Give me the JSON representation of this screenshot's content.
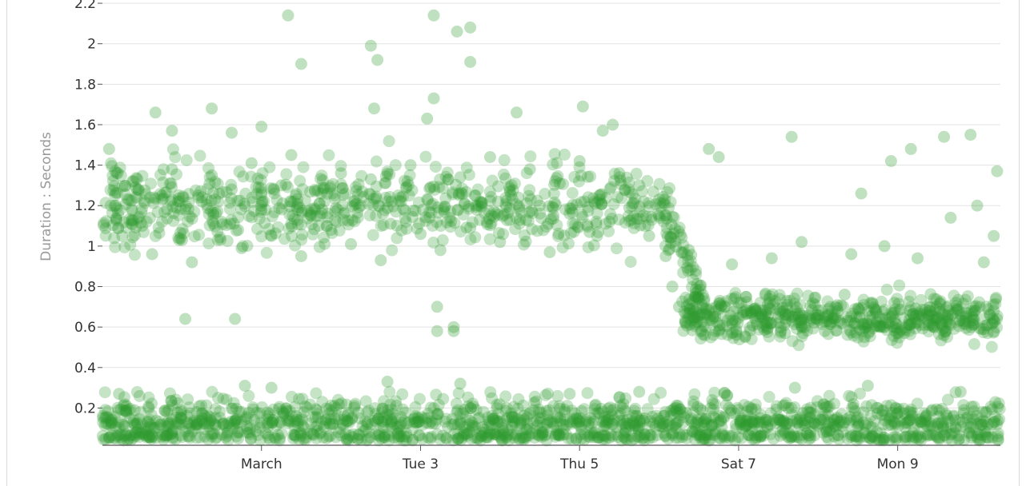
{
  "chart_data": {
    "type": "scatter",
    "ylabel": "Duration : Seconds",
    "xlabel": "",
    "y_ticks": [
      "0.2",
      "0.4",
      "0.6",
      "0.8",
      "1",
      "1.2",
      "1.4",
      "1.6",
      "1.8",
      "2",
      "2.2"
    ],
    "x_ticks": [
      {
        "label": "March",
        "date": "2020-03-01"
      },
      {
        "label": "Tue 3",
        "date": "2020-03-03"
      },
      {
        "label": "Thu 5",
        "date": "2020-03-05"
      },
      {
        "label": "Sat 7",
        "date": "2020-03-07"
      },
      {
        "label": "Mon 9",
        "date": "2020-03-09"
      }
    ],
    "xlim": [
      "2020-02-28T00:00",
      "2020-03-10T07:00"
    ],
    "ylim": [
      0.02,
      2.22
    ],
    "grid": true,
    "point_color": "#2e9b2e",
    "series": [
      {
        "points": [
          [
            "2020-02-29T01:00",
            0.64
          ],
          [
            "2020-02-29T16:00",
            0.64
          ],
          [
            "2020-03-03T05:00",
            0.58
          ],
          [
            "2020-03-03T05:00",
            0.7
          ],
          [
            "2020-03-03T10:00",
            0.58
          ],
          [
            "2020-03-03T10:00",
            0.6
          ],
          [
            "2020-03-01T08:00",
            2.14
          ],
          [
            "2020-03-01T12:00",
            1.9
          ],
          [
            "2020-03-02T09:00",
            1.99
          ],
          [
            "2020-03-02T11:00",
            1.92
          ],
          [
            "2020-03-03T04:00",
            2.14
          ],
          [
            "2020-03-03T11:00",
            2.06
          ],
          [
            "2020-03-03T15:00",
            2.08
          ],
          [
            "2020-03-03T15:00",
            1.91
          ],
          [
            "2020-02-28T16:00",
            1.66
          ],
          [
            "2020-02-28T21:00",
            1.57
          ],
          [
            "2020-02-29T09:00",
            1.68
          ],
          [
            "2020-02-29T15:00",
            1.56
          ],
          [
            "2020-03-01T00:00",
            1.59
          ],
          [
            "2020-03-02T10:00",
            1.68
          ],
          [
            "2020-03-03T02:00",
            1.63
          ],
          [
            "2020-03-03T04:00",
            1.73
          ],
          [
            "2020-03-04T05:00",
            1.66
          ],
          [
            "2020-03-05T01:00",
            1.69
          ],
          [
            "2020-03-05T07:00",
            1.57
          ],
          [
            "2020-03-05T10:00",
            1.6
          ],
          [
            "2020-03-06T15:00",
            1.48
          ],
          [
            "2020-03-06T18:00",
            1.44
          ],
          [
            "2020-03-07T16:00",
            1.54
          ],
          [
            "2020-03-08T22:00",
            1.42
          ],
          [
            "2020-03-09T04:00",
            1.48
          ],
          [
            "2020-03-09T14:00",
            1.54
          ],
          [
            "2020-03-09T22:00",
            1.55
          ],
          [
            "2020-03-10T06:00",
            1.37
          ],
          [
            "2020-02-28T02:00",
            1.48
          ],
          [
            "2020-02-28T04:00",
            1.2
          ],
          [
            "2020-02-28T06:00",
            1.05
          ],
          [
            "2020-02-28T09:00",
            1.32
          ],
          [
            "2020-02-28T12:00",
            1.1
          ],
          [
            "2020-02-28T15:00",
            0.96
          ],
          [
            "2020-02-28T18:00",
            1.25
          ],
          [
            "2020-02-28T21:00",
            1.38
          ],
          [
            "2020-02-29T00:00",
            1.03
          ],
          [
            "2020-02-29T03:00",
            0.92
          ],
          [
            "2020-02-29T06:00",
            1.22
          ],
          [
            "2020-02-29T09:00",
            1.35
          ],
          [
            "2020-02-29T12:00",
            1.12
          ],
          [
            "2020-02-29T15:00",
            1.28
          ],
          [
            "2020-02-29T18:00",
            0.99
          ],
          [
            "2020-02-29T21:00",
            1.41
          ],
          [
            "2020-03-01T00:00",
            1.18
          ],
          [
            "2020-03-01T03:00",
            1.05
          ],
          [
            "2020-03-01T06:00",
            1.3
          ],
          [
            "2020-03-01T09:00",
            1.45
          ],
          [
            "2020-03-01T12:00",
            0.95
          ],
          [
            "2020-03-01T15:00",
            1.15
          ],
          [
            "2020-03-01T18:00",
            1.26
          ],
          [
            "2020-03-01T21:00",
            1.08
          ],
          [
            "2020-03-02T00:00",
            1.36
          ],
          [
            "2020-03-02T03:00",
            1.01
          ],
          [
            "2020-03-02T06:00",
            1.2
          ],
          [
            "2020-03-02T09:00",
            1.33
          ],
          [
            "2020-03-02T12:00",
            0.93
          ],
          [
            "2020-03-02T15:00",
            1.11
          ],
          [
            "2020-03-02T18:00",
            1.24
          ],
          [
            "2020-03-02T21:00",
            1.4
          ],
          [
            "2020-03-03T00:00",
            1.06
          ],
          [
            "2020-03-03T03:00",
            1.29
          ],
          [
            "2020-03-03T06:00",
            0.98
          ],
          [
            "2020-03-03T09:00",
            1.17
          ],
          [
            "2020-03-03T12:00",
            1.34
          ],
          [
            "2020-03-03T15:00",
            1.09
          ],
          [
            "2020-03-03T18:00",
            1.22
          ],
          [
            "2020-03-03T21:00",
            1.44
          ],
          [
            "2020-03-04T00:00",
            1.02
          ],
          [
            "2020-03-04T03:00",
            1.27
          ],
          [
            "2020-03-04T06:00",
            1.13
          ],
          [
            "2020-03-04T09:00",
            1.38
          ],
          [
            "2020-03-04T12:00",
            1.2
          ],
          [
            "2020-03-04T15:00",
            0.97
          ],
          [
            "2020-03-04T18:00",
            1.31
          ],
          [
            "2020-03-04T21:00",
            1.16
          ],
          [
            "2020-03-05T00:00",
            1.42
          ],
          [
            "2020-03-05T03:00",
            1.07
          ],
          [
            "2020-03-05T06:00",
            1.25
          ],
          [
            "2020-03-05T09:00",
            1.12
          ],
          [
            "2020-03-05T12:00",
            1.36
          ],
          [
            "2020-03-05T15:00",
            1.19
          ],
          [
            "2020-03-05T18:00",
            1.3
          ],
          [
            "2020-03-05T21:00",
            1.05
          ],
          [
            "2020-03-06T00:00",
            1.23
          ],
          [
            "2020-03-06T02:00",
            0.95
          ],
          [
            "2020-03-06T04:00",
            0.8
          ],
          [
            "2020-03-06T06:00",
            0.7
          ],
          [
            "2020-03-06T08:00",
            0.62
          ],
          [
            "2020-03-06T11:00",
            0.75
          ],
          [
            "2020-03-06T14:00",
            0.66
          ],
          [
            "2020-03-06T17:00",
            0.58
          ],
          [
            "2020-03-06T20:00",
            0.7
          ],
          [
            "2020-03-06T23:00",
            0.63
          ],
          [
            "2020-03-07T02:00",
            0.55
          ],
          [
            "2020-03-07T05:00",
            0.68
          ],
          [
            "2020-03-07T08:00",
            0.61
          ],
          [
            "2020-03-07T11:00",
            0.73
          ],
          [
            "2020-03-07T14:00",
            0.57
          ],
          [
            "2020-03-07T17:00",
            0.66
          ],
          [
            "2020-03-07T20:00",
            0.6
          ],
          [
            "2020-03-07T23:00",
            0.71
          ],
          [
            "2020-03-08T02:00",
            0.58
          ],
          [
            "2020-03-08T05:00",
            0.64
          ],
          [
            "2020-03-08T08:00",
            0.76
          ],
          [
            "2020-03-08T11:00",
            0.62
          ],
          [
            "2020-03-08T14:00",
            0.55
          ],
          [
            "2020-03-08T17:00",
            0.69
          ],
          [
            "2020-03-08T20:00",
            0.6
          ],
          [
            "2020-03-08T23:00",
            0.72
          ],
          [
            "2020-03-09T02:00",
            0.57
          ],
          [
            "2020-03-09T05:00",
            0.65
          ],
          [
            "2020-03-09T08:00",
            0.61
          ],
          [
            "2020-03-09T11:00",
            0.74
          ],
          [
            "2020-03-09T14:00",
            0.56
          ],
          [
            "2020-03-09T17:00",
            0.67
          ],
          [
            "2020-03-09T20:00",
            0.63
          ],
          [
            "2020-03-09T23:00",
            0.7
          ],
          [
            "2020-03-10T02:00",
            0.59
          ],
          [
            "2020-03-10T05:00",
            0.68
          ],
          [
            "2020-03-06T09:00",
            0.98
          ],
          [
            "2020-03-06T22:00",
            0.91
          ],
          [
            "2020-03-07T10:00",
            0.94
          ],
          [
            "2020-03-07T19:00",
            1.02
          ],
          [
            "2020-03-08T10:00",
            0.96
          ],
          [
            "2020-03-08T13:00",
            1.26
          ],
          [
            "2020-03-08T20:00",
            1.0
          ],
          [
            "2020-03-09T06:00",
            0.94
          ],
          [
            "2020-03-09T16:00",
            1.14
          ],
          [
            "2020-03-10T00:00",
            1.2
          ],
          [
            "2020-03-10T02:00",
            0.92
          ],
          [
            "2020-03-10T05:00",
            1.05
          ],
          [
            "2020-02-28T05:00",
            0.27
          ],
          [
            "2020-02-29T19:00",
            0.31
          ],
          [
            "2020-03-01T03:00",
            0.3
          ],
          [
            "2020-03-02T14:00",
            0.33
          ],
          [
            "2020-03-03T12:00",
            0.32
          ],
          [
            "2020-03-04T21:00",
            0.27
          ],
          [
            "2020-03-05T18:00",
            0.28
          ],
          [
            "2020-03-07T17:00",
            0.3
          ],
          [
            "2020-03-08T15:00",
            0.31
          ],
          [
            "2020-03-09T19:00",
            0.28
          ],
          [
            "2020-02-28T03:00",
            0.14
          ],
          [
            "2020-02-28T10:00",
            0.08
          ],
          [
            "2020-02-28T20:00",
            0.19
          ],
          [
            "2020-02-29T07:00",
            0.12
          ],
          [
            "2020-02-29T17:00",
            0.05
          ],
          [
            "2020-03-01T02:00",
            0.16
          ],
          [
            "2020-03-01T13:00",
            0.1
          ],
          [
            "2020-03-01T22:00",
            0.21
          ],
          [
            "2020-03-02T08:00",
            0.13
          ],
          [
            "2020-03-02T19:00",
            0.06
          ],
          [
            "2020-03-03T05:00",
            0.17
          ],
          [
            "2020-03-03T16:00",
            0.11
          ],
          [
            "2020-03-04T02:00",
            0.2
          ],
          [
            "2020-03-04T13:00",
            0.08
          ],
          [
            "2020-03-04T23:00",
            0.15
          ],
          [
            "2020-03-05T10:00",
            0.12
          ],
          [
            "2020-03-05T21:00",
            0.05
          ],
          [
            "2020-03-06T07:00",
            0.18
          ],
          [
            "2020-03-06T18:00",
            0.13
          ],
          [
            "2020-03-07T04:00",
            0.09
          ],
          [
            "2020-03-07T15:00",
            0.2
          ],
          [
            "2020-03-08T01:00",
            0.14
          ],
          [
            "2020-03-08T12:00",
            0.06
          ],
          [
            "2020-03-08T22:00",
            0.16
          ],
          [
            "2020-03-09T09:00",
            0.11
          ],
          [
            "2020-03-09T20:00",
            0.19
          ],
          [
            "2020-03-10T05:00",
            0.13
          ]
        ]
      }
    ]
  }
}
